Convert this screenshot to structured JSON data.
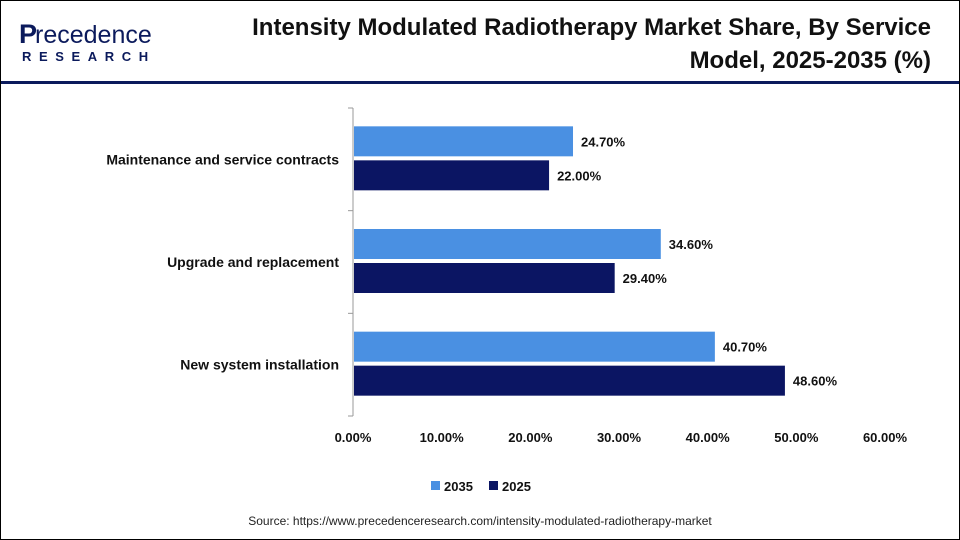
{
  "header": {
    "title": "Intensity Modulated Radiotherapy Market Share, By Service Model, 2025-2035 (%)",
    "logo_text": "Precedence RESEARCH"
  },
  "source": "Source: https://www.precedenceresearch.com/intensity-modulated-radiotherapy-market",
  "chart_data": {
    "type": "bar",
    "orientation": "horizontal",
    "categories": [
      "Maintenance and service contracts",
      "Upgrade and replacement",
      "New system installation"
    ],
    "series": [
      {
        "name": "2035",
        "color": "#4a90e2",
        "values": [
          24.7,
          34.6,
          40.7
        ],
        "labels": [
          "24.70%",
          "34.60%",
          "40.70%"
        ]
      },
      {
        "name": "2025",
        "color": "#0b1563",
        "values": [
          22.0,
          29.4,
          48.6
        ],
        "labels": [
          "22.00%",
          "29.40%",
          "48.60%"
        ]
      }
    ],
    "xlim": [
      0,
      60
    ],
    "xticks": [
      "0.00%",
      "10.00%",
      "20.00%",
      "30.00%",
      "40.00%",
      "50.00%",
      "60.00%"
    ],
    "grid": false,
    "legend": "bottom"
  }
}
